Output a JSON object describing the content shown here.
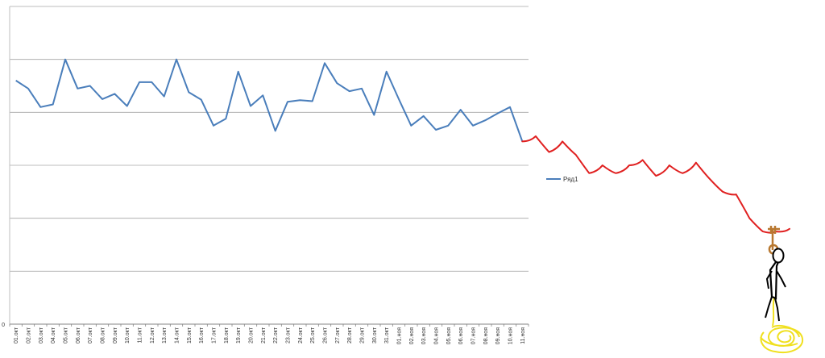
{
  "chart_data": {
    "type": "line",
    "title": "",
    "xlabel": "",
    "ylabel": "",
    "y_tick_labels": [
      "0"
    ],
    "ylim": [
      0,
      6
    ],
    "grid": true,
    "legend": "right",
    "categories": [
      "01.окт",
      "02.окт",
      "03.окт",
      "04.окт",
      "05.окт",
      "06.окт",
      "07.окт",
      "08.окт",
      "09.окт",
      "10.окт",
      "11.окт",
      "12.окт",
      "13.окт",
      "14.окт",
      "15.окт",
      "16.окт",
      "17.окт",
      "18.окт",
      "19.окт",
      "20.окт",
      "21.окт",
      "22.окт",
      "23.окт",
      "24.окт",
      "25.окт",
      "26.окт",
      "27.окт",
      "28.окт",
      "29.окт",
      "30.окт",
      "31.окт",
      "01.ноя",
      "02.ноя",
      "03.ноя",
      "04.ноя",
      "05.ноя",
      "06.ноя",
      "07.ноя",
      "08.ноя",
      "09.ноя",
      "10.ноя",
      "11.ноя"
    ],
    "series": [
      {
        "name": "Ряд1",
        "color": "#4a7ebb",
        "values": [
          4.6,
          4.45,
          4.1,
          4.15,
          5.0,
          4.45,
          4.5,
          4.25,
          4.35,
          4.12,
          4.57,
          4.57,
          4.3,
          5.0,
          4.38,
          4.24,
          3.75,
          3.88,
          4.77,
          4.12,
          4.32,
          3.65,
          4.2,
          4.23,
          4.21,
          4.93,
          4.55,
          4.4,
          4.45,
          3.95,
          4.77,
          4.25,
          3.75,
          3.93,
          3.67,
          3.75,
          4.05,
          3.75,
          3.85,
          3.98,
          4.1,
          3.45
        ]
      }
    ],
    "drawn_extension": {
      "color": "#e02020",
      "values": [
        3.45,
        3.55,
        3.25,
        3.45,
        3.2,
        2.85,
        3.0,
        2.85,
        3.0,
        3.1,
        2.8,
        3.0,
        2.85,
        3.05,
        2.75,
        2.5,
        2.45,
        2.0,
        1.75,
        1.75,
        1.8
      ]
    }
  },
  "doodle": {
    "figure": "stick-figure",
    "rope_color": "#b87830",
    "puddle_color": "#f0e020"
  }
}
